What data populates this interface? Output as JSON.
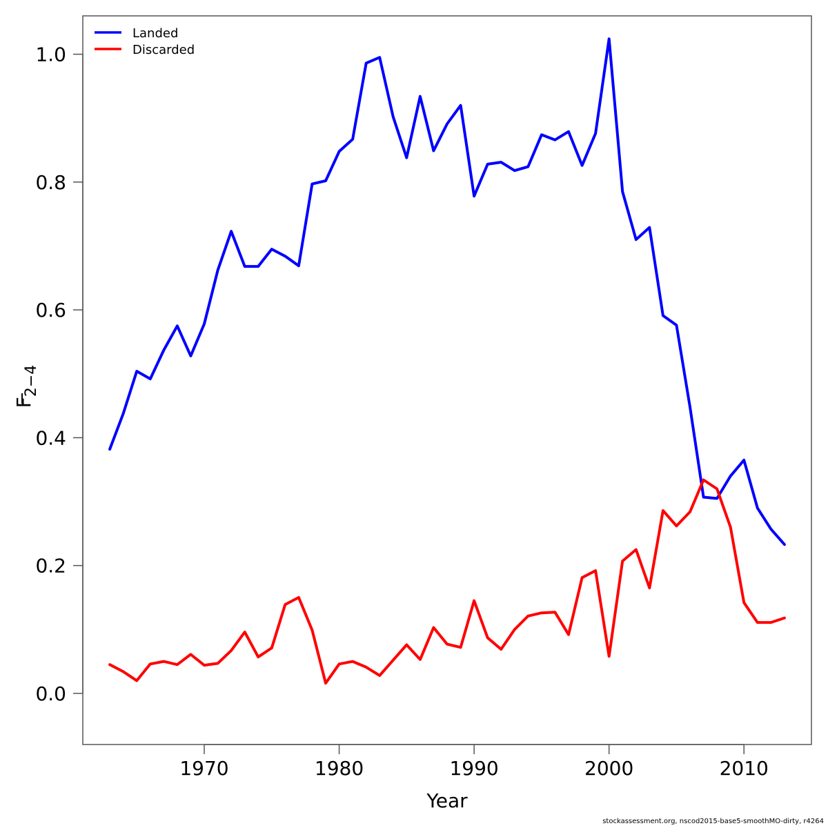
{
  "chart_data": {
    "type": "line",
    "xlabel": "Year",
    "ylabel": {
      "base": "F",
      "sub": "2−4"
    },
    "xlim": [
      1961,
      2015
    ],
    "ylim": [
      -0.08,
      1.06
    ],
    "xticks": [
      1970,
      1980,
      1990,
      2000,
      2010
    ],
    "yticks": [
      0.0,
      0.2,
      0.4,
      0.6,
      0.8,
      1.0
    ],
    "ytick_labels": [
      "0.0",
      "0.2",
      "0.4",
      "0.6",
      "0.8",
      "1.0"
    ],
    "legend_position": "top-left",
    "grid": false,
    "x": [
      1963,
      1964,
      1965,
      1966,
      1967,
      1968,
      1969,
      1970,
      1971,
      1972,
      1973,
      1974,
      1975,
      1976,
      1977,
      1978,
      1979,
      1980,
      1981,
      1982,
      1983,
      1984,
      1985,
      1986,
      1987,
      1988,
      1989,
      1990,
      1991,
      1992,
      1993,
      1994,
      1995,
      1996,
      1997,
      1998,
      1999,
      2000,
      2001,
      2002,
      2003,
      2004,
      2005,
      2006,
      2007,
      2008,
      2009,
      2010,
      2011,
      2012,
      2013
    ],
    "series": [
      {
        "name": "Landed",
        "color": "#0000ff",
        "values": [
          0.382,
          0.438,
          0.504,
          0.492,
          0.537,
          0.575,
          0.528,
          0.578,
          0.662,
          0.723,
          0.668,
          0.668,
          0.695,
          0.684,
          0.669,
          0.797,
          0.802,
          0.848,
          0.867,
          0.986,
          0.995,
          0.902,
          0.838,
          0.934,
          0.849,
          0.891,
          0.92,
          0.778,
          0.828,
          0.831,
          0.818,
          0.824,
          0.874,
          0.866,
          0.879,
          0.826,
          0.876,
          1.024,
          0.785,
          0.71,
          0.729,
          0.591,
          0.576,
          0.448,
          0.307,
          0.305,
          0.34,
          0.365,
          0.29,
          0.257,
          0.233
        ]
      },
      {
        "name": "Discarded",
        "color": "#ff0000",
        "values": [
          0.045,
          0.034,
          0.02,
          0.046,
          0.05,
          0.045,
          0.061,
          0.044,
          0.047,
          0.067,
          0.096,
          0.057,
          0.071,
          0.139,
          0.15,
          0.099,
          0.016,
          0.046,
          0.05,
          0.041,
          0.028,
          0.052,
          0.076,
          0.053,
          0.103,
          0.077,
          0.072,
          0.145,
          0.087,
          0.069,
          0.1,
          0.121,
          0.126,
          0.127,
          0.092,
          0.181,
          0.192,
          0.058,
          0.207,
          0.225,
          0.165,
          0.286,
          0.262,
          0.284,
          0.334,
          0.32,
          0.26,
          0.142,
          0.111,
          0.111,
          0.118
        ]
      }
    ]
  },
  "footer": "stockassessment.org, nscod2015-base5-smoothMO-dirty, r4264"
}
